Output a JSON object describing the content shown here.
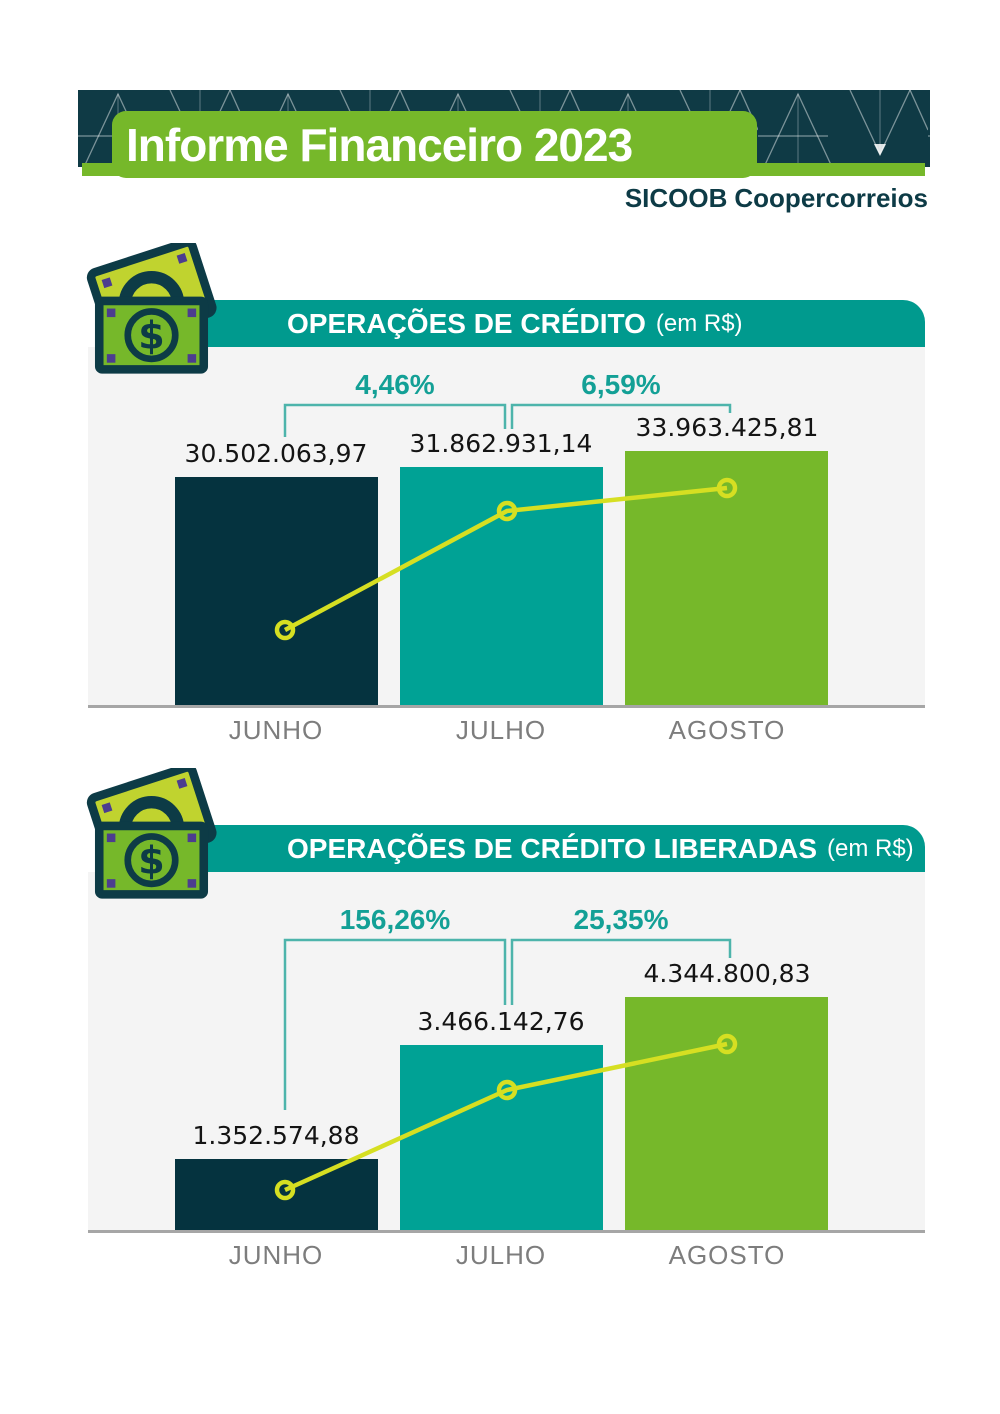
{
  "header": {
    "title": "Informe Financeiro 2023",
    "brand_bold": "SICOOB",
    "brand_name": "Coopercorreios"
  },
  "banners": [
    {
      "title": "OPERAÇÕES DE CRÉDITO",
      "unit": "(em R$)"
    },
    {
      "title": "OPERAÇÕES DE CRÉDITO LIBERADAS",
      "unit": "(em R$)"
    }
  ],
  "chart_data": [
    {
      "type": "bar",
      "title": "OPERAÇÕES DE CRÉDITO (em R$)",
      "categories": [
        "JUNHO",
        "JULHO",
        "AGOSTO"
      ],
      "values": [
        30502063.97,
        31862931.14,
        33963425.81
      ],
      "value_labels": [
        "30.502.063,97",
        "31.862.931,14",
        "33.963.425,81"
      ],
      "pct_change_values": [
        4.46,
        6.59
      ],
      "pct_change_labels": [
        "4,46%",
        "6,59%"
      ],
      "bar_colors": [
        "#05333f",
        "#00a295",
        "#76b82a"
      ],
      "overlay_line": {
        "style": "open-circle-markers",
        "color": "#d6df22"
      },
      "ylim": [
        0,
        33963425.81
      ],
      "grid": false,
      "legend": false
    },
    {
      "type": "bar",
      "title": "OPERAÇÕES DE CRÉDITO LIBERADAS (em R$)",
      "categories": [
        "JUNHO",
        "JULHO",
        "AGOSTO"
      ],
      "values": [
        1352574.88,
        3466142.76,
        4344800.83
      ],
      "value_labels": [
        "1.352.574,88",
        "3.466.142,76",
        "4.344.800,83"
      ],
      "pct_change_values": [
        156.26,
        25.35
      ],
      "pct_change_labels": [
        "156,26%",
        "25,35%"
      ],
      "bar_colors": [
        "#05333f",
        "#00a295",
        "#76b82a"
      ],
      "overlay_line": {
        "style": "open-circle-markers",
        "color": "#d6df22"
      },
      "ylim": [
        0,
        4344800.83
      ],
      "grid": false,
      "legend": false
    }
  ],
  "colors": {
    "header_band": "#0f3a45",
    "brand_text": "#0d3b46",
    "accent_green": "#76b82a",
    "banner_teal": "#009a8e",
    "bar_dark": "#05333f",
    "bar_teal": "#00a295",
    "bar_green": "#76b82a",
    "trend_lime": "#d6df22",
    "delta_text": "#13a096",
    "bracket_line": "#4db4ab",
    "card_bg": "#f4f4f4",
    "axis_gray": "#a6a6a6",
    "month_gray": "#7d7d7d",
    "icon_purple": "#4c3d8f",
    "icon_back_bill": "#c0d32f"
  }
}
